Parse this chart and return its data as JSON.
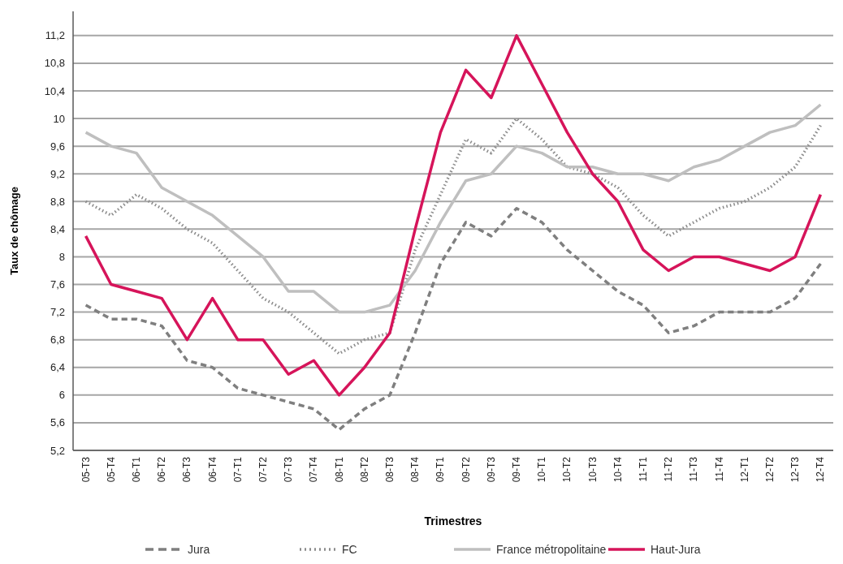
{
  "chart_data": {
    "type": "line",
    "xlabel": "Trimestres",
    "ylabel": "Taux de chômage",
    "categories": [
      "05-T3",
      "05-T4",
      "06-T1",
      "06-T2",
      "06-T3",
      "06-T4",
      "07-T1",
      "07-T2",
      "07-T3",
      "07-T4",
      "08-T1",
      "08-T2",
      "08-T3",
      "08-T4",
      "09-T1",
      "09-T2",
      "09-T3",
      "09-T4",
      "10-T1",
      "10-T2",
      "10-T3",
      "10-T4",
      "11-T1",
      "11-T2",
      "11-T3",
      "11-T4",
      "12-T1",
      "12-T2",
      "12-T3",
      "12-T4"
    ],
    "series": [
      {
        "name": "Jura",
        "color": "#7f7f7f",
        "line_style": "dashed",
        "values": [
          7.3,
          7.1,
          7.1,
          7.0,
          6.5,
          6.4,
          6.1,
          6.0,
          5.9,
          5.8,
          5.5,
          5.8,
          6.0,
          6.9,
          7.9,
          8.5,
          8.3,
          8.7,
          8.5,
          8.1,
          7.8,
          7.5,
          7.3,
          6.9,
          7.0,
          7.2,
          7.2,
          7.2,
          7.4,
          7.9
        ]
      },
      {
        "name": "FC",
        "color": "#8c8c8c",
        "line_style": "dotted",
        "values": [
          8.8,
          8.6,
          8.9,
          8.7,
          8.4,
          8.2,
          7.8,
          7.4,
          7.2,
          6.9,
          6.6,
          6.8,
          6.9,
          8.1,
          8.9,
          9.7,
          9.5,
          10.0,
          9.7,
          9.3,
          9.2,
          9.0,
          8.6,
          8.3,
          8.5,
          8.7,
          8.8,
          9.0,
          9.3,
          9.9
        ]
      },
      {
        "name": "France métropolitaine",
        "color": "#bfbfbf",
        "line_style": "solid",
        "values": [
          9.8,
          9.6,
          9.5,
          9.0,
          8.8,
          8.6,
          8.3,
          8.0,
          7.5,
          7.5,
          7.2,
          7.2,
          7.3,
          7.8,
          8.5,
          9.1,
          9.2,
          9.6,
          9.5,
          9.3,
          9.3,
          9.2,
          9.2,
          9.1,
          9.3,
          9.4,
          9.6,
          9.8,
          9.9,
          10.2
        ]
      },
      {
        "name": "Haut-Jura",
        "color": "#d6145a",
        "line_style": "solid",
        "values": [
          8.3,
          7.6,
          7.5,
          7.4,
          6.8,
          7.4,
          6.8,
          6.8,
          6.3,
          6.5,
          6.0,
          6.4,
          6.9,
          8.4,
          9.8,
          10.7,
          10.3,
          11.2,
          10.5,
          9.8,
          9.2,
          8.8,
          8.1,
          7.8,
          8.0,
          8.0,
          7.9,
          7.8,
          8.0,
          8.9
        ]
      }
    ],
    "ylim": [
      5.2,
      11.55
    ],
    "yticks": [
      {
        "value": 5.2,
        "label": "5,2"
      },
      {
        "value": 5.6,
        "label": "5,6"
      },
      6,
      {
        "value": 6.4,
        "label": "6,4"
      },
      {
        "value": 6.8,
        "label": "6,8"
      },
      {
        "value": 7.2,
        "label": "7,2"
      },
      {
        "value": 7.6,
        "label": "7,6"
      },
      8,
      {
        "value": 8.4,
        "label": "8,4"
      },
      {
        "value": 8.8,
        "label": "8,8"
      },
      {
        "value": 9.2,
        "label": "9,2"
      },
      {
        "value": 9.6,
        "label": "9,6"
      },
      10,
      {
        "value": 10.4,
        "label": "10,4"
      },
      {
        "value": 10.8,
        "label": "10,8"
      },
      {
        "value": 11.2,
        "label": "11,2"
      }
    ],
    "grid": "y",
    "legend": "bottom",
    "marker": "none"
  }
}
